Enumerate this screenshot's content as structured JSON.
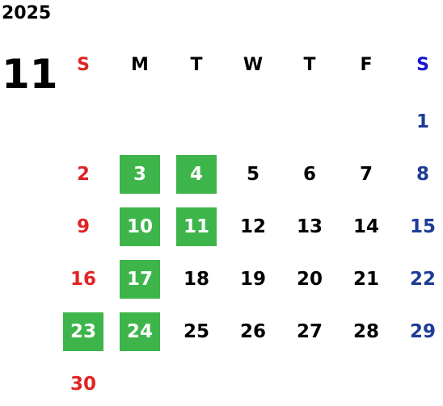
{
  "year": "2025",
  "month": "11",
  "weekdays": [
    "S",
    "M",
    "T",
    "W",
    "T",
    "F",
    "S"
  ],
  "weeks": [
    [
      null,
      null,
      null,
      null,
      null,
      null,
      1
    ],
    [
      2,
      3,
      4,
      5,
      6,
      7,
      8
    ],
    [
      9,
      10,
      11,
      12,
      13,
      14,
      15
    ],
    [
      16,
      17,
      18,
      19,
      20,
      21,
      22
    ],
    [
      23,
      24,
      25,
      26,
      27,
      28,
      29
    ],
    [
      30,
      null,
      null,
      null,
      null,
      null,
      null
    ]
  ],
  "highlighted": [
    3,
    4,
    10,
    11,
    17,
    23,
    24
  ]
}
